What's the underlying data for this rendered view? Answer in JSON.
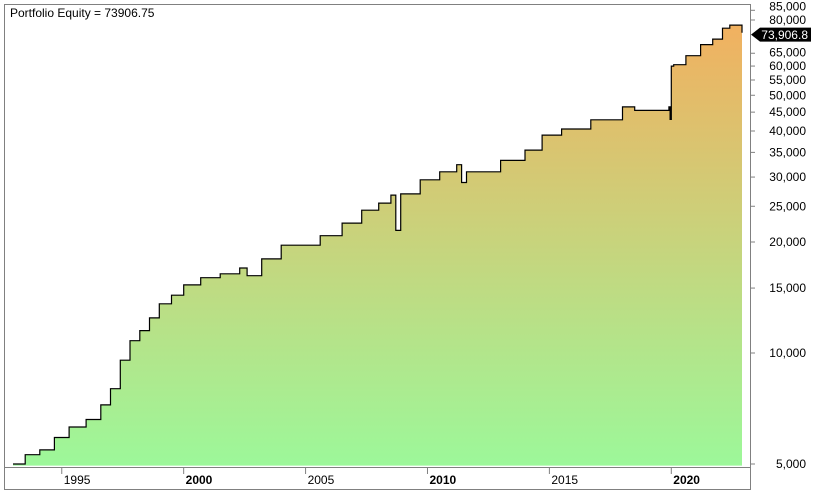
{
  "chart_data": {
    "type": "area",
    "title": "Portfolio Equity = 73906.75",
    "xlabel": "",
    "ylabel": "",
    "y_scale": "log",
    "ylim": [
      4900,
      87000
    ],
    "xlim": [
      1992.95,
      2023.15
    ],
    "grid": false,
    "legend": "none",
    "last_value_label": "73,906.8",
    "x_ticks": [
      {
        "year": 1995,
        "label": "1995",
        "bold": false
      },
      {
        "year": 2000,
        "label": "2000",
        "bold": true
      },
      {
        "year": 2005,
        "label": "2005",
        "bold": false
      },
      {
        "year": 2010,
        "label": "2010",
        "bold": true
      },
      {
        "year": 2015,
        "label": "2015",
        "bold": false
      },
      {
        "year": 2020,
        "label": "2020",
        "bold": true
      }
    ],
    "y_ticks": [
      {
        "value": 5000,
        "label": "5,000"
      },
      {
        "value": 10000,
        "label": "10,000"
      },
      {
        "value": 15000,
        "label": "15,000"
      },
      {
        "value": 20000,
        "label": "20,000"
      },
      {
        "value": 25000,
        "label": "25,000"
      },
      {
        "value": 30000,
        "label": "30,000"
      },
      {
        "value": 35000,
        "label": "35,000"
      },
      {
        "value": 40000,
        "label": "40,000"
      },
      {
        "value": 45000,
        "label": "45,000"
      },
      {
        "value": 50000,
        "label": "50,000"
      },
      {
        "value": 55000,
        "label": "55,000"
      },
      {
        "value": 60000,
        "label": "60,000"
      },
      {
        "value": 65000,
        "label": "65,000"
      },
      {
        "value": 80000,
        "label": "80,000"
      },
      {
        "value": 85000,
        "label": "85,000"
      }
    ],
    "series": [
      {
        "x": [
          1993.0,
          1993.5,
          1994.1,
          1994.7,
          1995.3,
          1996.0,
          1996.6,
          1997.0,
          1997.4,
          1997.8,
          1998.2,
          1998.6,
          1999.0,
          1999.5,
          2000.0,
          2000.7,
          2001.5,
          2002.3,
          2002.6,
          2003.2,
          2004.0,
          2005.6,
          2006.5,
          2007.3,
          2008.0,
          2008.5,
          2008.7,
          2008.9,
          2009.7,
          2010.5,
          2011.2,
          2011.4,
          2011.6,
          2013.0,
          2014.0,
          2014.7,
          2015.5,
          2016.7,
          2018.0,
          2018.5,
          2019.9,
          2019.95,
          2020.0,
          2020.1,
          2020.6,
          2021.2,
          2021.7,
          2022.1,
          2022.4,
          2022.9
        ],
        "y": [
          5000,
          5300,
          5460,
          5900,
          6300,
          6600,
          7230,
          8000,
          9560,
          10800,
          11500,
          12450,
          13600,
          14350,
          15300,
          16000,
          16400,
          17000,
          16200,
          18000,
          19600,
          20800,
          22500,
          24400,
          25500,
          26800,
          21500,
          27000,
          29500,
          31000,
          32400,
          29000,
          31000,
          33300,
          35500,
          39000,
          40500,
          42900,
          46500,
          45500,
          46500,
          43000,
          60000,
          60500,
          64000,
          68600,
          71000,
          76000,
          77500,
          73906.75
        ]
      }
    ],
    "colors": {
      "fill_top": "#f4ae5e",
      "fill_bottom": "#9cf89a",
      "line": "#000000",
      "value_label_bg": "#000000",
      "value_label_text": "#ffffff"
    }
  }
}
